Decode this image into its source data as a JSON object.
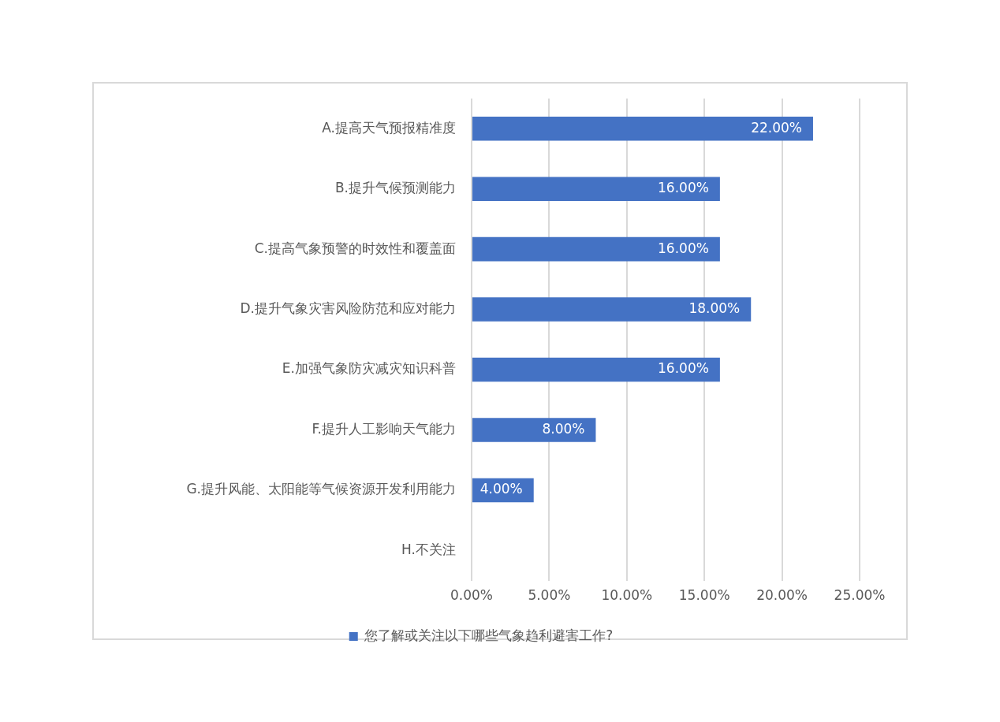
{
  "chart_data": {
    "type": "bar",
    "orientation": "horizontal",
    "categories": [
      "A.提高天气预报精准度",
      "B.提升气候预测能力",
      "C.提高气象预警的时效性和覆盖面",
      "D.提升气象灾害风险防范和应对能力",
      "E.加强气象防灾减灾知识科普",
      "F.提升人工影响天气能力",
      "G.提升风能、太阳能等气候资源开发利用能力",
      "H.不关注"
    ],
    "series": [
      {
        "name": "您了解或关注以下哪些气象趋利避害工作?",
        "color": "#4472c4",
        "values": [
          22,
          16,
          16,
          18,
          16,
          8,
          4,
          null
        ],
        "value_labels": [
          "22.00%",
          "16.00%",
          "16.00%",
          "18.00%",
          "16.00%",
          "8.00%",
          "4.00%",
          null
        ]
      }
    ],
    "xlim": [
      0,
      25
    ],
    "xticks": [
      {
        "value": 0,
        "label": "0.00%"
      },
      {
        "value": 5,
        "label": "5.00%"
      },
      {
        "value": 10,
        "label": "10.00%"
      },
      {
        "value": 15,
        "label": "15.00%"
      },
      {
        "value": 20,
        "label": "20.00%"
      },
      {
        "value": 25,
        "label": "25.00%"
      }
    ],
    "grid": "x",
    "legend": "bottom"
  }
}
